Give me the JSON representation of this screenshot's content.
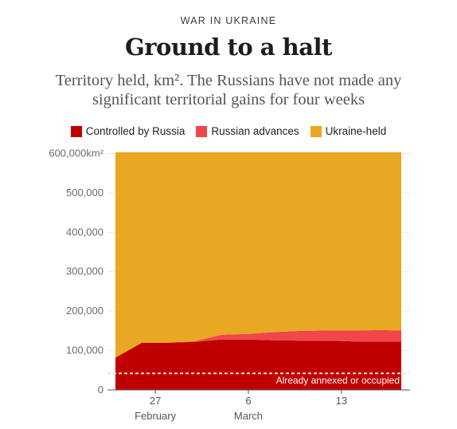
{
  "header": {
    "kicker": "WAR IN UKRAINE",
    "title": "Ground to a halt",
    "subtitle": "Territory held, km². The Russians have not made any significant territorial gains for four weeks"
  },
  "colors": {
    "russia": "#c00000",
    "advances": "#f2464b",
    "ukraine": "#e9a823",
    "dashed_line": "#e8e2d8"
  },
  "chart_data": {
    "type": "area",
    "stacked": true,
    "legend_position": "top",
    "grid": true,
    "ylim": [
      0,
      603000
    ],
    "y_ticks": [
      0,
      100000,
      200000,
      300000,
      400000,
      500000,
      600000
    ],
    "y_tick_labels": [
      "0",
      "100,000",
      "200,000",
      "300,000",
      "400,000",
      "500,000",
      "600,000km²"
    ],
    "x_ticks": [
      {
        "day": 27,
        "label_top": "27",
        "label_bottom": "February"
      },
      {
        "day": 34,
        "label_top": "6",
        "label_bottom": "March"
      },
      {
        "day": 41,
        "label_top": "13",
        "label_bottom": ""
      }
    ],
    "x_domain_days": [
      24,
      45.5
    ],
    "x_days": [
      24,
      26,
      28,
      30,
      32,
      34,
      36,
      38,
      40,
      42,
      44,
      45.5
    ],
    "series": [
      {
        "name": "Controlled by Russia",
        "values": [
          82000,
          120000,
          120000,
          122000,
          128000,
          128000,
          126000,
          125000,
          125000,
          123000,
          123000,
          123000
        ]
      },
      {
        "name": "Russian advances",
        "values": [
          0,
          0,
          0,
          2000,
          12000,
          14000,
          21000,
          25000,
          26000,
          28000,
          29000,
          28000
        ]
      },
      {
        "name": "Ukraine-held",
        "values": [
          521000,
          483000,
          483000,
          479000,
          463000,
          461000,
          456000,
          453000,
          452000,
          452000,
          451000,
          452000
        ]
      }
    ],
    "reference_line": {
      "value": 42000,
      "label": "Already annexed or occupied"
    }
  }
}
